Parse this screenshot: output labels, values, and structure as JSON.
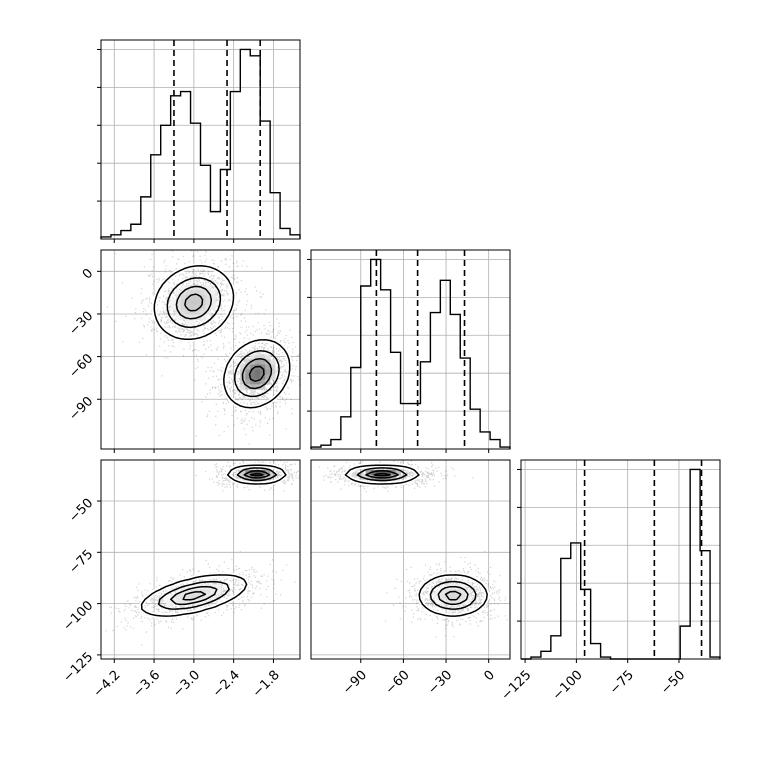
{
  "chart_data": {
    "type": "corner",
    "grid": true,
    "hist_color": "#000000",
    "hist2d_cmap": "greys",
    "quantile_line_style": "dashed",
    "parameters": [
      {
        "index": 0,
        "range": [
          -4.4,
          -1.4
        ],
        "ticks": [
          -4.2,
          -3.6,
          -3.0,
          -2.4,
          -1.8
        ],
        "tick_labels": [
          "−4.2",
          "−3.6",
          "−3.0",
          "−2.4",
          "−1.8"
        ],
        "quantiles": [
          -3.3,
          -2.5,
          -2.0
        ],
        "histogram": {
          "counts": [
            0.01,
            0.02,
            0.04,
            0.07,
            0.2,
            0.4,
            0.54,
            0.68,
            0.7,
            0.55,
            0.35,
            0.13,
            0.33,
            0.7,
            0.9,
            0.87,
            0.56,
            0.22,
            0.05,
            0.02
          ]
        }
      },
      {
        "index": 1,
        "range": [
          -125,
          15
        ],
        "ticks": [
          -90,
          -60,
          -30,
          0
        ],
        "tick_labels": [
          "−90",
          "−60",
          "−30",
          "0"
        ],
        "quantiles": [
          -79,
          -50,
          -17
        ],
        "histogram": {
          "counts": [
            0.01,
            0.02,
            0.05,
            0.17,
            0.43,
            0.86,
            1.0,
            0.84,
            0.51,
            0.24,
            0.24,
            0.46,
            0.72,
            0.89,
            0.71,
            0.48,
            0.21,
            0.09,
            0.05,
            0.01
          ]
        }
      },
      {
        "index": 2,
        "range": [
          -127,
          -30
        ],
        "ticks": [
          -125,
          -100,
          -75,
          -50
        ],
        "tick_labels": [
          "−125",
          "−100",
          "−75",
          "−50"
        ],
        "quantiles": [
          -96,
          -62,
          -39
        ],
        "histogram": {
          "counts": [
            0,
            0.01,
            0.04,
            0.12,
            0.52,
            0.6,
            0.36,
            0.08,
            0.01,
            0,
            0,
            0,
            0,
            0,
            0,
            0,
            0.17,
            0.98,
            0.56,
            0.01
          ]
        }
      }
    ],
    "pairs": [
      {
        "x_param": 0,
        "y_param": 1,
        "clusters": [
          {
            "center": [
              -3.0,
              -22
            ],
            "sigma": [
              0.3,
              13
            ],
            "rho": 0.15,
            "peak": 0.22
          },
          {
            "center": [
              -2.05,
              -72
            ],
            "sigma": [
              0.25,
              12
            ],
            "rho": 0.2,
            "peak": 0.55
          }
        ]
      },
      {
        "x_param": 0,
        "y_param": 2,
        "clusters": [
          {
            "center": [
              -3.0,
              -96
            ],
            "sigma": [
              0.4,
              5
            ],
            "rho": 0.55,
            "peak": 0.14
          },
          {
            "center": [
              -2.05,
              -37
            ],
            "sigma": [
              0.22,
              2.2
            ],
            "rho": 0.0,
            "peak": 0.8
          }
        ]
      },
      {
        "x_param": 1,
        "y_param": 2,
        "clusters": [
          {
            "center": [
              -75,
              -37
            ],
            "sigma": [
              13,
              2.2
            ],
            "rho": 0.0,
            "peak": 0.8
          },
          {
            "center": [
              -25,
              -96
            ],
            "sigma": [
              12,
              5
            ],
            "rho": 0.0,
            "peak": 0.16
          }
        ]
      }
    ]
  }
}
